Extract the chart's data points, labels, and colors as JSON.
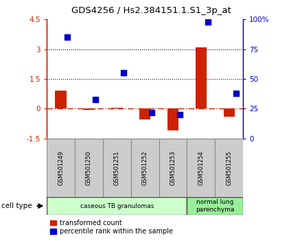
{
  "title": "GDS4256 / Hs2.384151.1.S1_3p_at",
  "samples": [
    "GSM501249",
    "GSM501250",
    "GSM501251",
    "GSM501252",
    "GSM501253",
    "GSM501254",
    "GSM501255"
  ],
  "transformed_count": [
    0.9,
    -0.05,
    0.05,
    -0.55,
    -1.1,
    3.1,
    -0.4
  ],
  "percentile_rank": [
    85,
    33,
    55,
    22,
    20,
    98,
    38
  ],
  "ylim_left": [
    -1.5,
    4.5
  ],
  "ylim_right": [
    0,
    100
  ],
  "yticks_left": [
    -1.5,
    0,
    1.5,
    3,
    4.5
  ],
  "yticks_right": [
    0,
    25,
    50,
    75,
    100
  ],
  "yticklabels_left": [
    "-1.5",
    "0",
    "1.5",
    "3",
    "4.5"
  ],
  "yticklabels_right": [
    "0",
    "25",
    "50",
    "75",
    "100%"
  ],
  "hlines": [
    1.5,
    3.0
  ],
  "zero_line": 0,
  "bar_color": "#cc2200",
  "dot_color": "#0000cc",
  "cell_groups": [
    {
      "label": "caseous TB granulomas",
      "samples": [
        0,
        1,
        2,
        3,
        4
      ],
      "color": "#ccffcc"
    },
    {
      "label": "normal lung\nparenchyma",
      "samples": [
        5,
        6
      ],
      "color": "#99ee99"
    }
  ],
  "cell_type_label": "cell type",
  "legend_bar_label": "transformed count",
  "legend_dot_label": "percentile rank within the sample",
  "bar_width": 0.4,
  "dot_size": 40,
  "sample_box_color": "#cccccc",
  "sample_box_edge": "#888888"
}
